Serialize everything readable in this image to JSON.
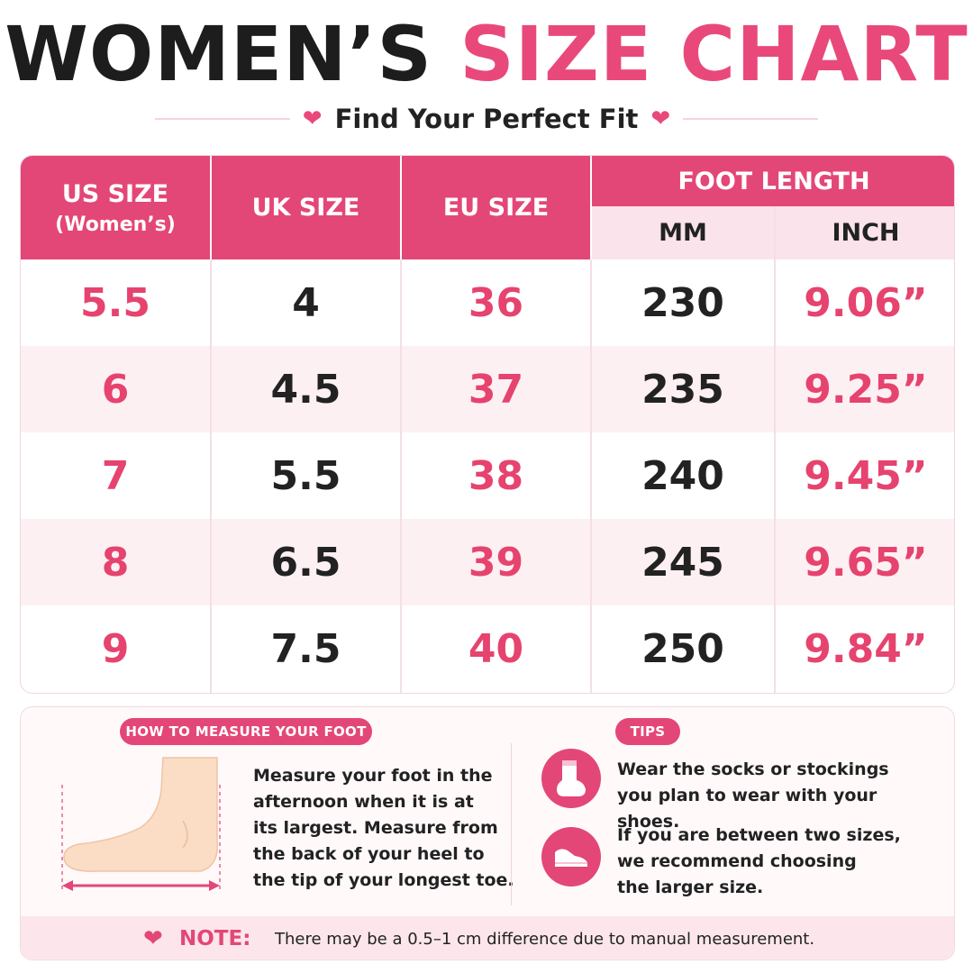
{
  "title": {
    "part1": "WOMEN’S",
    "part2": "SIZE CHART"
  },
  "subtitle": "Find Your Perfect Fit",
  "table": {
    "headers": {
      "us": "US SIZE",
      "us_sub": "(Women’s)",
      "uk": "UK SIZE",
      "eu": "EU SIZE",
      "foot_length": "FOOT LENGTH",
      "mm": "MM",
      "inch": "INCH"
    },
    "rows": [
      {
        "us": "5.5",
        "uk": "4",
        "eu": "36",
        "mm": "230",
        "inch": "9.06”"
      },
      {
        "us": "6",
        "uk": "4.5",
        "eu": "37",
        "mm": "235",
        "inch": "9.25”"
      },
      {
        "us": "7",
        "uk": "5.5",
        "eu": "38",
        "mm": "240",
        "inch": "9.45”"
      },
      {
        "us": "8",
        "uk": "6.5",
        "eu": "39",
        "mm": "245",
        "inch": "9.65”"
      },
      {
        "us": "9",
        "uk": "7.5",
        "eu": "40",
        "mm": "250",
        "inch": "9.84”"
      }
    ]
  },
  "measure": {
    "label": "HOW TO MEASURE YOUR FOOT",
    "lines": [
      "Measure your foot in the",
      "afternoon when it is at",
      "its largest. Measure from",
      "the back of your heel to",
      "the tip of your longest toe."
    ]
  },
  "tips": {
    "label": "TIPS",
    "items": [
      {
        "icon": "sock-icon",
        "lines": [
          "Wear the socks or stockings",
          "you plan to wear with your shoes."
        ]
      },
      {
        "icon": "shoe-icon",
        "lines": [
          "If you are between two sizes,",
          "we recommend choosing",
          "the larger size."
        ]
      }
    ]
  },
  "note": {
    "label": "NOTE:",
    "text": "There may be a 0.5–1 cm difference due to manual measurement."
  },
  "colors": {
    "accent": "#e34777",
    "accent_text": "#e6436f",
    "light_pink": "#fbe3eb",
    "row_alt": "#fdf0f3"
  }
}
